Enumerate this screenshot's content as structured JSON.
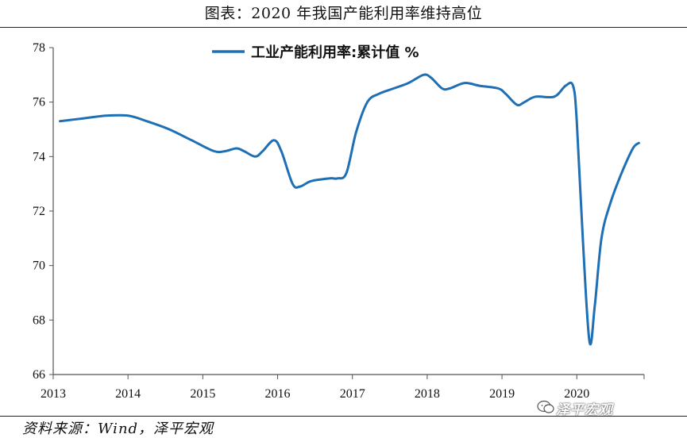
{
  "header": {
    "title": "图表：2020 年我国产能利用率维持高位"
  },
  "footer": {
    "source": "资料来源：Wind，泽平宏观",
    "watermark": "泽平宏观"
  },
  "chart_data": {
    "type": "line",
    "title": "",
    "xlabel": "",
    "ylabel": "",
    "ylim": [
      66,
      78
    ],
    "yticks": [
      66,
      68,
      70,
      72,
      74,
      76,
      78
    ],
    "xlim": [
      2013,
      2020.9
    ],
    "xticks": [
      2013,
      2014,
      2015,
      2016,
      2017,
      2018,
      2019,
      2020
    ],
    "grid": false,
    "legend_position": "top-center",
    "series": [
      {
        "name": "工业产能利用率:累计值 %",
        "color": "#1f6fb5",
        "points": [
          [
            2013.09,
            75.3
          ],
          [
            2013.4,
            75.4
          ],
          [
            2013.7,
            75.5
          ],
          [
            2014.0,
            75.5
          ],
          [
            2014.25,
            75.3
          ],
          [
            2014.55,
            75.0
          ],
          [
            2014.85,
            74.6
          ],
          [
            2015.15,
            74.2
          ],
          [
            2015.3,
            74.2
          ],
          [
            2015.45,
            74.3
          ],
          [
            2015.55,
            74.2
          ],
          [
            2015.7,
            74.0
          ],
          [
            2015.8,
            74.2
          ],
          [
            2015.95,
            74.6
          ],
          [
            2016.05,
            74.2
          ],
          [
            2016.2,
            73.0
          ],
          [
            2016.3,
            72.9
          ],
          [
            2016.45,
            73.1
          ],
          [
            2016.7,
            73.2
          ],
          [
            2016.8,
            73.2
          ],
          [
            2016.92,
            73.4
          ],
          [
            2017.05,
            74.9
          ],
          [
            2017.2,
            76.0
          ],
          [
            2017.35,
            76.3
          ],
          [
            2017.55,
            76.5
          ],
          [
            2017.75,
            76.7
          ],
          [
            2017.95,
            77.0
          ],
          [
            2018.05,
            76.9
          ],
          [
            2018.2,
            76.5
          ],
          [
            2018.3,
            76.5
          ],
          [
            2018.5,
            76.7
          ],
          [
            2018.7,
            76.6
          ],
          [
            2018.95,
            76.5
          ],
          [
            2019.05,
            76.3
          ],
          [
            2019.2,
            75.9
          ],
          [
            2019.3,
            76.0
          ],
          [
            2019.45,
            76.2
          ],
          [
            2019.7,
            76.2
          ],
          [
            2019.85,
            76.6
          ],
          [
            2019.95,
            76.6
          ],
          [
            2020.0,
            75.3
          ],
          [
            2020.08,
            71.0
          ],
          [
            2020.17,
            67.2
          ],
          [
            2020.24,
            68.5
          ],
          [
            2020.33,
            71.0
          ],
          [
            2020.45,
            72.3
          ],
          [
            2020.6,
            73.4
          ],
          [
            2020.75,
            74.3
          ],
          [
            2020.83,
            74.5
          ]
        ]
      }
    ]
  }
}
